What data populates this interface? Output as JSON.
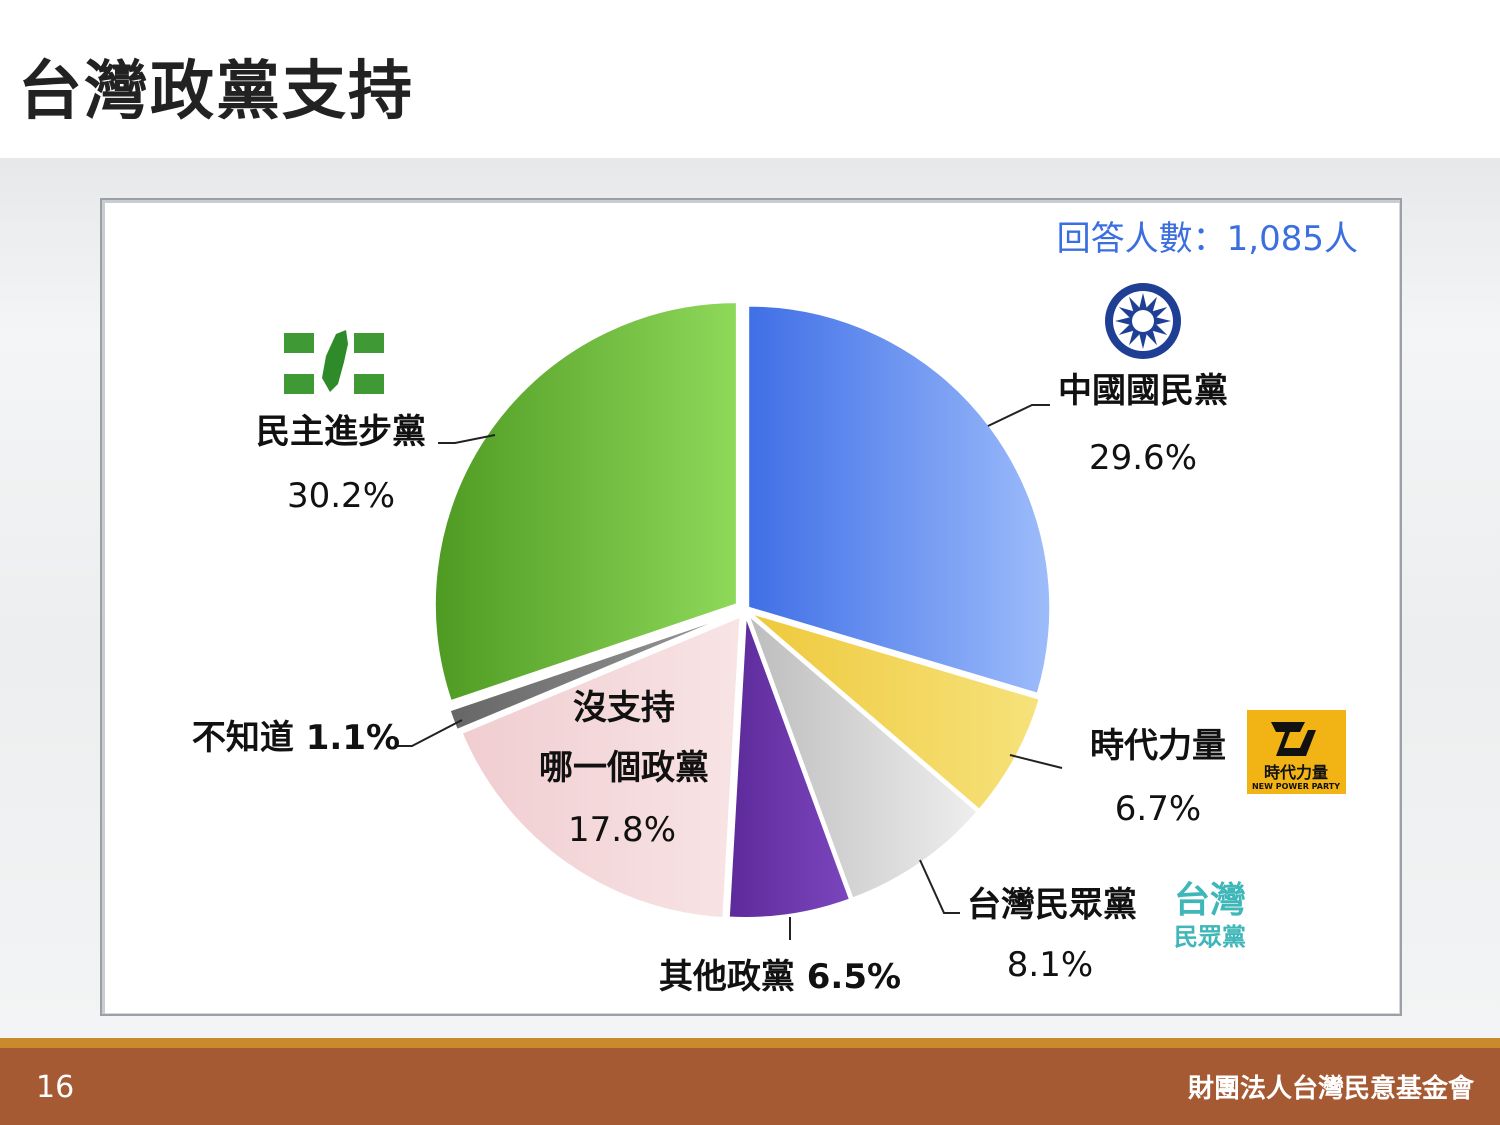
{
  "title": "台灣政黨支持",
  "footer": {
    "page_number": "16",
    "organization": "財團法人台灣民意基金會"
  },
  "respondents_label": "回答人數：1,085人",
  "logos": {
    "npp_text": "時代力量",
    "npp_subtext": "NEW POWER PARTY",
    "tpp_text_top": "台灣",
    "tpp_text_bottom": "民眾黨"
  },
  "chart_data": {
    "type": "pie",
    "title": "",
    "slices": [
      {
        "label": "中國國民黨",
        "value": 29.6,
        "value_text": "29.6%",
        "color": "#4f82f2"
      },
      {
        "label": "時代力量",
        "value": 6.7,
        "value_text": "6.7%",
        "color": "#f3d24a"
      },
      {
        "label": "台灣民眾黨",
        "value": 8.1,
        "value_text": "8.1%",
        "color": "#cfcfcf"
      },
      {
        "label": "其他政黨",
        "value": 6.5,
        "value_text": "6.5%",
        "color": "#6a36a8"
      },
      {
        "label": "沒支持哪一個政黨",
        "value": 17.8,
        "value_text": "17.8%",
        "color": "#f3d7d8"
      },
      {
        "label": "不知道",
        "value": 1.1,
        "value_text": "1.1%",
        "color": "#777777"
      },
      {
        "label": "民主進步黨",
        "value": 30.2,
        "value_text": "30.2%",
        "color": "#6dbb38"
      }
    ],
    "display_labels": {
      "kmt_name": "中國國民黨",
      "kmt_pct": "29.6%",
      "npp_name": "時代力量",
      "npp_pct": "6.7%",
      "tpp_name": "台灣民眾黨",
      "tpp_pct": "8.1%",
      "other": "其他政黨 6.5%",
      "none_1": "沒支持",
      "none_2": "哪一個政黨",
      "none_pct": "17.8%",
      "dunno": "不知道 1.1%",
      "dpp_name": "民主進步黨",
      "dpp_pct": "30.2%"
    }
  }
}
